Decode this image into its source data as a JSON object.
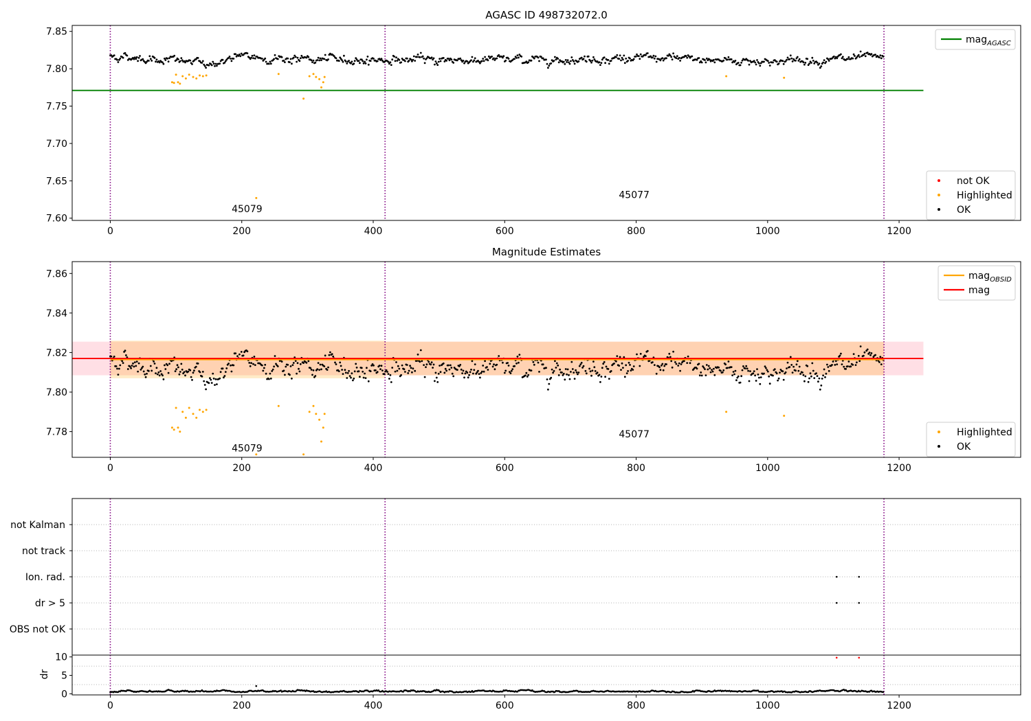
{
  "chart_data": [
    {
      "type": "scatter",
      "title": "AGASC ID 498732072.0",
      "xlim": [
        -58,
        1385
      ],
      "ylim": [
        7.597,
        7.858
      ],
      "xticks": [
        0,
        200,
        400,
        600,
        800,
        1000,
        1200
      ],
      "yticks": [
        7.6,
        7.65,
        7.7,
        7.75,
        7.8,
        7.85
      ],
      "ytick_decimals": 2,
      "grid": false,
      "vlines": [
        0,
        418,
        1177
      ],
      "hline": {
        "y": 7.771,
        "x_end": 1237,
        "color": "#008000"
      },
      "annotations": [
        {
          "text": "45079",
          "x": 208,
          "y": 7.608
        },
        {
          "text": "45077",
          "x": 797,
          "y": 7.627
        }
      ],
      "legend_top": {
        "placement": "top-right",
        "entries": [
          {
            "label": "mag",
            "sub": "AGASC",
            "kind": "line",
            "color": "#008000"
          }
        ]
      },
      "legend_bottom": {
        "placement": "bottom-right",
        "entries": [
          {
            "label": "not OK",
            "kind": "dot",
            "color": "#ff0000"
          },
          {
            "label": "Highlighted",
            "kind": "dot",
            "color": "#ffa500"
          },
          {
            "label": "OK",
            "kind": "dot",
            "color": "#000000"
          }
        ]
      },
      "series_params": {
        "base": [
          [
            0,
            7.817
          ],
          [
            90,
            7.812
          ],
          [
            150,
            7.806
          ],
          [
            200,
            7.816
          ],
          [
            250,
            7.814
          ],
          [
            300,
            7.812
          ],
          [
            400,
            7.812
          ],
          [
            600,
            7.812
          ],
          [
            800,
            7.814
          ],
          [
            1000,
            7.81
          ],
          [
            1177,
            7.814
          ]
        ],
        "noise": 0.0045
      },
      "highlighted": [
        [
          94,
          7.782
        ],
        [
          97,
          7.781
        ],
        [
          100,
          7.792
        ],
        [
          103,
          7.782
        ],
        [
          106,
          7.78
        ],
        [
          110,
          7.79
        ],
        [
          115,
          7.787
        ],
        [
          120,
          7.792
        ],
        [
          126,
          7.789
        ],
        [
          131,
          7.787
        ],
        [
          136,
          7.791
        ],
        [
          141,
          7.79
        ],
        [
          146,
          7.791
        ],
        [
          222,
          7.627
        ],
        [
          256,
          7.793
        ],
        [
          294,
          7.76
        ],
        [
          303,
          7.79
        ],
        [
          309,
          7.793
        ],
        [
          313,
          7.789
        ],
        [
          318,
          7.786
        ],
        [
          321,
          7.775
        ],
        [
          324,
          7.782
        ],
        [
          326,
          7.789
        ],
        [
          937,
          7.79
        ],
        [
          1025,
          7.788
        ]
      ]
    },
    {
      "type": "scatter",
      "title": "Magnitude Estimates",
      "xlim": [
        -58,
        1385
      ],
      "ylim": [
        7.767,
        7.866
      ],
      "xticks": [
        0,
        200,
        400,
        600,
        800,
        1000,
        1200
      ],
      "yticks": [
        7.78,
        7.8,
        7.82,
        7.84,
        7.86
      ],
      "ytick_decimals": 2,
      "grid": false,
      "vlines": [
        0,
        418,
        1177
      ],
      "mag_line": {
        "y": 7.817,
        "band": [
          7.8085,
          7.8255
        ],
        "x_end": 1237,
        "color": "#ff0000"
      },
      "obsid_bands": [
        {
          "x0": 0,
          "x1": 418,
          "y": 7.8165,
          "band": [
            7.807,
            7.826
          ]
        },
        {
          "x0": 418,
          "x1": 1177,
          "y": 7.8165,
          "band": [
            7.8085,
            7.8255
          ]
        }
      ],
      "annotations": [
        {
          "text": "45079",
          "x": 208,
          "y": 7.77
        },
        {
          "text": "45077",
          "x": 797,
          "y": 7.777
        }
      ],
      "legend_top": {
        "placement": "top-right",
        "entries": [
          {
            "label": "mag",
            "sub": "OBSID",
            "kind": "line",
            "color": "#ffa500"
          },
          {
            "label": "mag",
            "sub": "",
            "kind": "line",
            "color": "#ff0000"
          }
        ]
      },
      "legend_bottom": {
        "placement": "bottom-right",
        "entries": [
          {
            "label": "Highlighted",
            "kind": "dot",
            "color": "#ffa500"
          },
          {
            "label": "OK",
            "kind": "dot",
            "color": "#000000"
          }
        ]
      },
      "highlighted": [
        [
          94,
          7.782
        ],
        [
          97,
          7.781
        ],
        [
          100,
          7.792
        ],
        [
          103,
          7.782
        ],
        [
          106,
          7.78
        ],
        [
          110,
          7.79
        ],
        [
          115,
          7.787
        ],
        [
          120,
          7.792
        ],
        [
          126,
          7.789
        ],
        [
          131,
          7.787
        ],
        [
          136,
          7.791
        ],
        [
          141,
          7.79
        ],
        [
          146,
          7.791
        ],
        [
          222,
          7.7685
        ],
        [
          256,
          7.793
        ],
        [
          294,
          7.7685
        ],
        [
          303,
          7.79
        ],
        [
          309,
          7.793
        ],
        [
          313,
          7.789
        ],
        [
          318,
          7.786
        ],
        [
          321,
          7.775
        ],
        [
          324,
          7.782
        ],
        [
          326,
          7.789
        ],
        [
          937,
          7.79
        ],
        [
          1025,
          7.788
        ]
      ]
    },
    {
      "type": "scatter",
      "title": "",
      "xlim": [
        -58,
        1385
      ],
      "categories": [
        "not Kalman",
        "not track",
        "Ion. rad.",
        "dr > 5",
        "OBS not OK"
      ],
      "vlines": [
        0,
        418,
        1177
      ],
      "flag_points": [
        {
          "category": "Ion. rad.",
          "x": [
            1105,
            1139
          ]
        },
        {
          "category": "dr > 5",
          "x": [
            1105,
            1139
          ]
        }
      ]
    },
    {
      "type": "scatter",
      "title": "",
      "ylabel": "dr",
      "xlim": [
        -58,
        1385
      ],
      "ylim": [
        -0.3,
        10.5
      ],
      "xticks": [
        0,
        200,
        400,
        600,
        800,
        1000,
        1200
      ],
      "yticks": [
        0,
        5,
        10
      ],
      "ytick_decimals": 0,
      "vlines": [
        0,
        418,
        1177
      ],
      "dr_outliers": [
        [
          222,
          2.1
        ],
        [
          1105,
          9.8
        ],
        [
          1139,
          9.8
        ]
      ]
    }
  ]
}
